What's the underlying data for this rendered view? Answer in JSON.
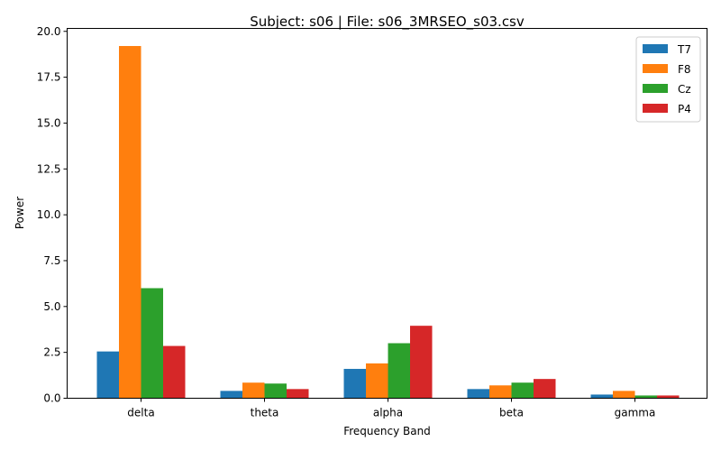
{
  "chart_data": {
    "type": "bar",
    "title": "Subject: s06 | File: s06_3MRSEO_s03.csv",
    "xlabel": "Frequency Band",
    "ylabel": "Power",
    "categories": [
      "delta",
      "theta",
      "alpha",
      "beta",
      "gamma"
    ],
    "series": [
      {
        "name": "T7",
        "color": "#1f77b4",
        "values": [
          2.55,
          0.4,
          1.6,
          0.5,
          0.2
        ]
      },
      {
        "name": "F8",
        "color": "#ff7f0e",
        "values": [
          19.2,
          0.85,
          1.9,
          0.7,
          0.4
        ]
      },
      {
        "name": "Cz",
        "color": "#2ca02c",
        "values": [
          6.0,
          0.8,
          3.0,
          0.85,
          0.15
        ]
      },
      {
        "name": "P4",
        "color": "#d62728",
        "values": [
          2.85,
          0.5,
          3.95,
          1.05,
          0.15
        ]
      }
    ],
    "ylim": [
      0,
      20.16
    ],
    "yticks": [
      "0.0",
      "2.5",
      "5.0",
      "7.5",
      "10.0",
      "12.5",
      "15.0",
      "17.5",
      "20.0"
    ],
    "grid": false,
    "legend_position": "top-right"
  }
}
